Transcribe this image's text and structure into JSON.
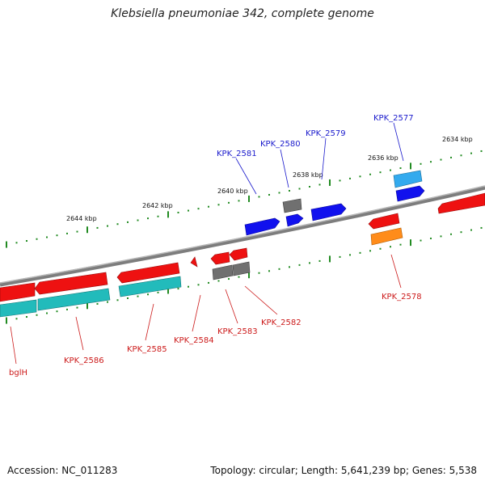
{
  "title": "Klebsiella pneumoniae 342, complete genome",
  "footer": {
    "accession": "Accession: NC_011283",
    "stats": "Topology: circular; Length: 5,641,239 bp; Genes: 5,538"
  },
  "ticks": [
    {
      "label": "2644 kbp"
    },
    {
      "label": "2642 kbp"
    },
    {
      "label": "2640 kbp"
    },
    {
      "label": "2638 kbp"
    },
    {
      "label": "2636 kbp"
    },
    {
      "label": "2634 kbp"
    }
  ],
  "genes": [
    {
      "label": "bglH"
    },
    {
      "label": "KPK_2586"
    },
    {
      "label": "KPK_2585"
    },
    {
      "label": "KPK_2584"
    },
    {
      "label": "KPK_2583"
    },
    {
      "label": "KPK_2582"
    },
    {
      "label": "KPK_2581"
    },
    {
      "label": "KPK_2580"
    },
    {
      "label": "KPK_2579"
    },
    {
      "label": "KPK_2578"
    },
    {
      "label": "KPK_2577"
    }
  ],
  "colors": {
    "backbone": "#8c8c8c",
    "tick": "#228b22",
    "forward_label": "#1a1acc",
    "reverse_label": "#cc1a1a",
    "cds_red": "#ee1111",
    "cds_blue": "#1111ee",
    "cds_gray": "#707070",
    "cds_teal": "#22bbbb",
    "cds_cyan": "#33aaee",
    "cds_orange": "#ff8c1a"
  }
}
